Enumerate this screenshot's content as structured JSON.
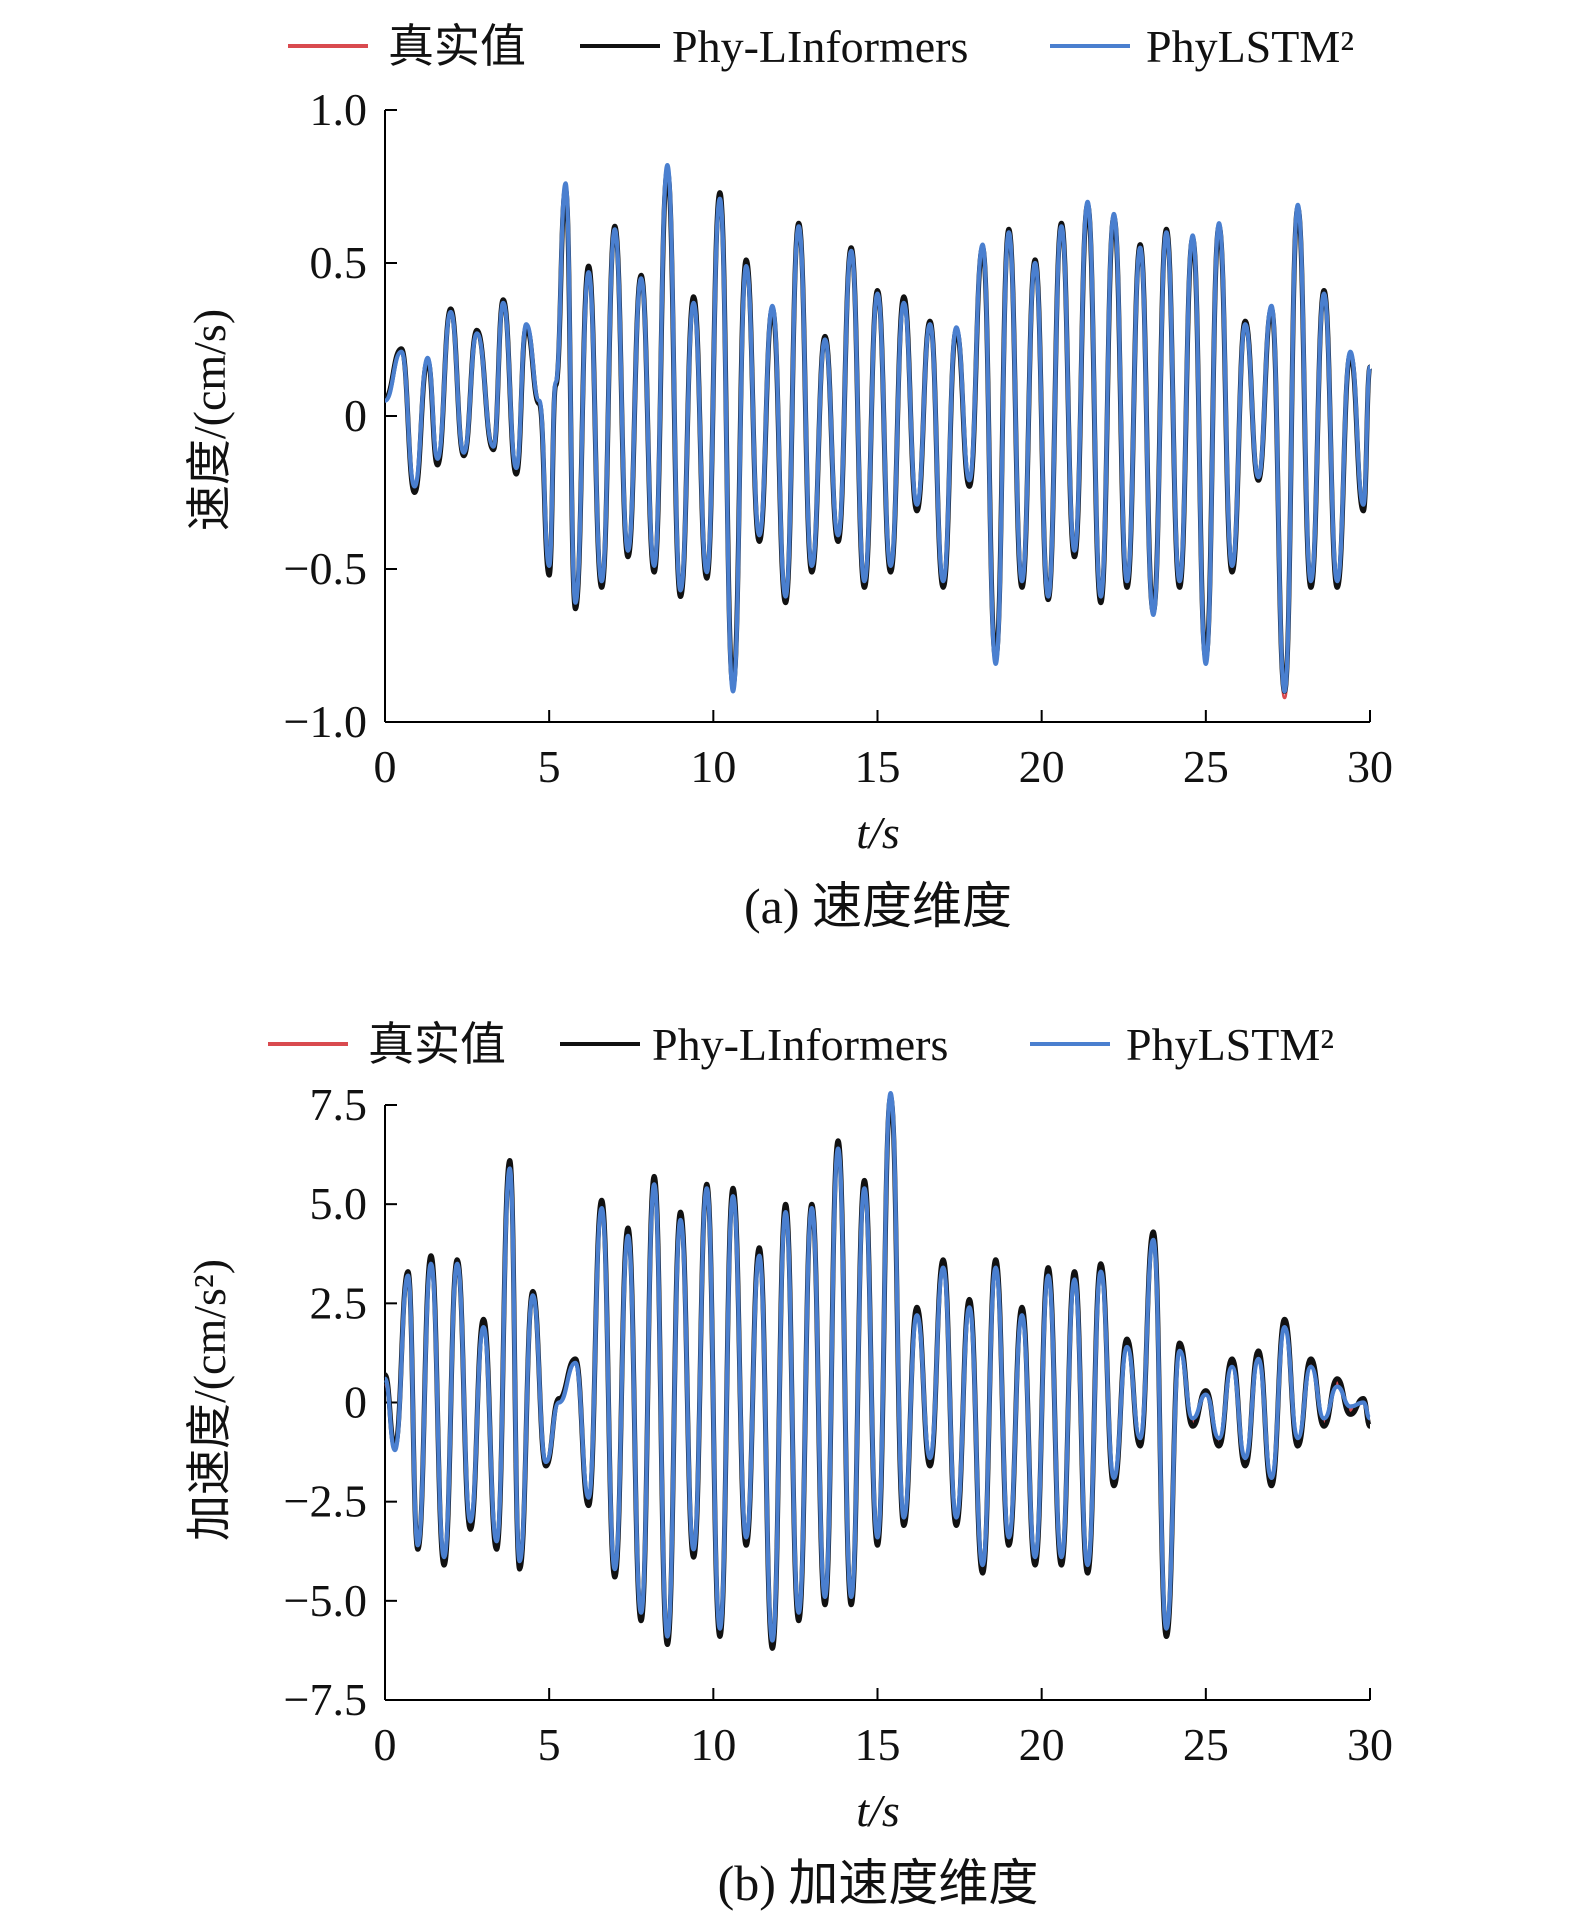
{
  "chart_data": [
    {
      "type": "line",
      "panel": "a",
      "caption": "(a) 速度维度",
      "xlabel": "t/s",
      "ylabel": "速度/(cm/s)",
      "xlim": [
        0,
        30
      ],
      "ylim": [
        -1.0,
        1.0
      ],
      "xticks": [
        0,
        5,
        10,
        15,
        20,
        25,
        30
      ],
      "xtick_labels": [
        "0",
        "5",
        "10",
        "15",
        "20",
        "25",
        "30"
      ],
      "yticks": [
        -1.0,
        -0.5,
        0,
        0.5,
        1.0
      ],
      "ytick_labels": [
        "−1.0",
        "−0.5",
        "0",
        "0.5",
        "1.0"
      ],
      "legend": [
        "真实值",
        "Phy-LInformers",
        "PhyLSTM²"
      ],
      "series_colors": [
        "#d94a4f",
        "#111111",
        "#4a7fcf"
      ],
      "x": [
        0,
        0.5,
        0.9,
        1.3,
        1.6,
        2.0,
        2.4,
        2.8,
        3.3,
        3.6,
        4.0,
        4.3,
        4.7,
        5.0,
        5.2,
        5.5,
        5.8,
        6.2,
        6.6,
        7.0,
        7.4,
        7.8,
        8.2,
        8.6,
        9.0,
        9.4,
        9.8,
        10.2,
        10.6,
        11.0,
        11.4,
        11.8,
        12.2,
        12.6,
        13.0,
        13.4,
        13.8,
        14.2,
        14.6,
        15.0,
        15.4,
        15.8,
        16.2,
        16.6,
        17.0,
        17.4,
        17.8,
        18.2,
        18.6,
        19.0,
        19.4,
        19.8,
        20.2,
        20.6,
        21.0,
        21.4,
        21.8,
        22.2,
        22.6,
        23.0,
        23.4,
        23.8,
        24.2,
        24.6,
        25.0,
        25.4,
        25.8,
        26.2,
        26.6,
        27.0,
        27.4,
        27.8,
        28.2,
        28.6,
        29.0,
        29.4,
        29.8,
        30.0
      ],
      "series": [
        {
          "name": "真实值",
          "values": [
            0.05,
            0.22,
            -0.24,
            0.18,
            -0.15,
            0.35,
            -0.12,
            0.28,
            -0.1,
            0.38,
            -0.18,
            0.3,
            0.05,
            -0.5,
            0.1,
            0.75,
            -0.62,
            0.48,
            -0.55,
            0.62,
            -0.45,
            0.45,
            -0.5,
            0.8,
            -0.58,
            0.38,
            -0.52,
            0.72,
            -0.9,
            0.5,
            -0.4,
            0.35,
            -0.6,
            0.62,
            -0.5,
            0.25,
            -0.4,
            0.55,
            -0.55,
            0.4,
            -0.5,
            0.38,
            -0.3,
            0.3,
            -0.55,
            0.28,
            -0.22,
            0.55,
            -0.8,
            0.6,
            -0.55,
            0.5,
            -0.6,
            0.62,
            -0.45,
            0.7,
            -0.6,
            0.65,
            -0.55,
            0.55,
            -0.65,
            0.6,
            -0.55,
            0.58,
            -0.8,
            0.62,
            -0.5,
            0.3,
            -0.2,
            0.35,
            -0.92,
            0.68,
            -0.55,
            0.4,
            -0.55,
            0.2,
            -0.3,
            0.15
          ]
        },
        {
          "name": "Phy-LInformers",
          "values": [
            0.06,
            0.22,
            -0.25,
            0.18,
            -0.16,
            0.35,
            -0.13,
            0.28,
            -0.11,
            0.38,
            -0.19,
            0.29,
            0.04,
            -0.52,
            0.1,
            0.74,
            -0.63,
            0.49,
            -0.56,
            0.62,
            -0.46,
            0.46,
            -0.51,
            0.8,
            -0.59,
            0.39,
            -0.53,
            0.73,
            -0.88,
            0.51,
            -0.41,
            0.35,
            -0.61,
            0.63,
            -0.51,
            0.26,
            -0.41,
            0.55,
            -0.56,
            0.41,
            -0.51,
            0.39,
            -0.31,
            0.31,
            -0.56,
            0.28,
            -0.23,
            0.55,
            -0.79,
            0.61,
            -0.56,
            0.51,
            -0.6,
            0.63,
            -0.46,
            0.69,
            -0.61,
            0.65,
            -0.56,
            0.56,
            -0.64,
            0.61,
            -0.56,
            0.58,
            -0.79,
            0.62,
            -0.51,
            0.31,
            -0.21,
            0.35,
            -0.9,
            0.68,
            -0.56,
            0.41,
            -0.56,
            0.2,
            -0.31,
            0.16
          ]
        },
        {
          "name": "PhyLSTM²",
          "values": [
            0.05,
            0.21,
            -0.23,
            0.19,
            -0.14,
            0.34,
            -0.12,
            0.27,
            -0.1,
            0.37,
            -0.17,
            0.3,
            0.05,
            -0.49,
            0.11,
            0.76,
            -0.61,
            0.47,
            -0.54,
            0.61,
            -0.44,
            0.45,
            -0.49,
            0.82,
            -0.57,
            0.37,
            -0.51,
            0.71,
            -0.9,
            0.49,
            -0.39,
            0.36,
            -0.59,
            0.62,
            -0.49,
            0.25,
            -0.39,
            0.54,
            -0.54,
            0.4,
            -0.49,
            0.37,
            -0.29,
            0.3,
            -0.54,
            0.29,
            -0.21,
            0.56,
            -0.81,
            0.6,
            -0.54,
            0.5,
            -0.59,
            0.62,
            -0.44,
            0.7,
            -0.59,
            0.66,
            -0.54,
            0.55,
            -0.65,
            0.6,
            -0.54,
            0.59,
            -0.81,
            0.63,
            -0.49,
            0.3,
            -0.2,
            0.36,
            -0.9,
            0.69,
            -0.54,
            0.4,
            -0.54,
            0.21,
            -0.29,
            0.16
          ]
        }
      ]
    },
    {
      "type": "line",
      "panel": "b",
      "caption": "(b) 加速度维度",
      "xlabel": "t/s",
      "ylabel": "加速度/(cm/s²)",
      "xlim": [
        0,
        30
      ],
      "ylim": [
        -7.5,
        7.5
      ],
      "xticks": [
        0,
        5,
        10,
        15,
        20,
        25,
        30
      ],
      "xtick_labels": [
        "0",
        "5",
        "10",
        "15",
        "20",
        "25",
        "30"
      ],
      "yticks": [
        -7.5,
        -5.0,
        -2.5,
        0,
        2.5,
        5.0,
        7.5
      ],
      "ytick_labels": [
        "−7.5",
        "−5.0",
        "−2.5",
        "0",
        "2.5",
        "5.0",
        "7.5"
      ],
      "legend": [
        "真实值",
        "Phy-LInformers",
        "PhyLSTM²"
      ],
      "series_colors": [
        "#d94a4f",
        "#111111",
        "#4a7fcf"
      ],
      "x": [
        0,
        0.3,
        0.7,
        1.0,
        1.4,
        1.8,
        2.2,
        2.6,
        3.0,
        3.4,
        3.8,
        4.1,
        4.5,
        4.9,
        5.3,
        5.8,
        6.2,
        6.6,
        7.0,
        7.4,
        7.8,
        8.2,
        8.6,
        9.0,
        9.4,
        9.8,
        10.2,
        10.6,
        11.0,
        11.4,
        11.8,
        12.2,
        12.6,
        13.0,
        13.4,
        13.8,
        14.2,
        14.6,
        15.0,
        15.4,
        15.8,
        16.2,
        16.6,
        17.0,
        17.4,
        17.8,
        18.2,
        18.6,
        19.0,
        19.4,
        19.8,
        20.2,
        20.6,
        21.0,
        21.4,
        21.8,
        22.2,
        22.6,
        23.0,
        23.4,
        23.8,
        24.2,
        24.6,
        25.0,
        25.4,
        25.8,
        26.2,
        26.6,
        27.0,
        27.4,
        27.8,
        28.2,
        28.6,
        29.0,
        29.4,
        29.8,
        30.0
      ],
      "series": [
        {
          "name": "真实值",
          "values": [
            0.5,
            -1.2,
            3.2,
            -3.6,
            3.6,
            -4.0,
            3.6,
            -3.0,
            2.0,
            -3.5,
            6.0,
            -4.0,
            2.8,
            -1.5,
            0.0,
            1.0,
            -2.5,
            5.0,
            -4.3,
            4.3,
            -5.4,
            5.6,
            -6.0,
            4.7,
            -3.8,
            5.5,
            -5.8,
            5.3,
            -3.5,
            3.8,
            -6.1,
            4.9,
            -5.4,
            5.0,
            -5.0,
            6.5,
            -5.0,
            5.5,
            -3.5,
            7.8,
            -3.0,
            2.3,
            -1.5,
            3.5,
            -3.0,
            2.5,
            -4.2,
            3.5,
            -3.5,
            2.3,
            -4.0,
            3.3,
            -4.0,
            3.2,
            -4.2,
            3.4,
            -2.0,
            1.5,
            -1.0,
            4.2,
            -5.8,
            1.4,
            -0.5,
            0.2,
            -1.0,
            1.0,
            -1.5,
            1.2,
            -2.0,
            2.0,
            -1.0,
            1.0,
            -0.5,
            0.5,
            -0.2,
            0.0,
            -0.5
          ]
        },
        {
          "name": "Phy-LInformers",
          "values": [
            0.7,
            -1.1,
            3.3,
            -3.7,
            3.7,
            -4.1,
            3.6,
            -3.2,
            2.1,
            -3.7,
            6.1,
            -4.2,
            2.8,
            -1.6,
            0.1,
            1.1,
            -2.6,
            5.1,
            -4.4,
            4.4,
            -5.5,
            5.7,
            -6.1,
            4.8,
            -3.9,
            5.5,
            -5.9,
            5.4,
            -3.6,
            3.9,
            -6.2,
            5.0,
            -5.5,
            5.0,
            -5.1,
            6.6,
            -5.1,
            5.6,
            -3.6,
            7.7,
            -3.1,
            2.4,
            -1.6,
            3.6,
            -3.1,
            2.6,
            -4.3,
            3.6,
            -3.6,
            2.4,
            -4.1,
            3.4,
            -4.1,
            3.3,
            -4.3,
            3.5,
            -2.1,
            1.6,
            -1.1,
            4.3,
            -5.9,
            1.5,
            -0.6,
            0.3,
            -1.1,
            1.1,
            -1.6,
            1.3,
            -2.1,
            2.1,
            -1.1,
            1.1,
            -0.6,
            0.6,
            -0.3,
            0.1,
            -0.6
          ]
        },
        {
          "name": "PhyLSTM²",
          "values": [
            0.6,
            -1.2,
            3.2,
            -3.6,
            3.5,
            -3.9,
            3.5,
            -3.0,
            1.9,
            -3.5,
            5.9,
            -4.0,
            2.7,
            -1.5,
            0.0,
            1.0,
            -2.4,
            4.9,
            -4.2,
            4.2,
            -5.3,
            5.5,
            -5.9,
            4.6,
            -3.7,
            5.4,
            -5.7,
            5.2,
            -3.4,
            3.7,
            -6.0,
            4.8,
            -5.3,
            4.9,
            -4.9,
            6.4,
            -4.9,
            5.4,
            -3.4,
            7.8,
            -2.9,
            2.2,
            -1.4,
            3.4,
            -2.9,
            2.4,
            -4.1,
            3.4,
            -3.4,
            2.2,
            -3.9,
            3.2,
            -3.9,
            3.1,
            -4.1,
            3.3,
            -1.9,
            1.4,
            -0.9,
            4.1,
            -5.7,
            1.3,
            -0.4,
            0.2,
            -0.9,
            0.9,
            -1.4,
            1.1,
            -1.9,
            1.9,
            -0.9,
            0.9,
            -0.4,
            0.4,
            -0.1,
            0.0,
            -0.4
          ]
        }
      ]
    }
  ]
}
